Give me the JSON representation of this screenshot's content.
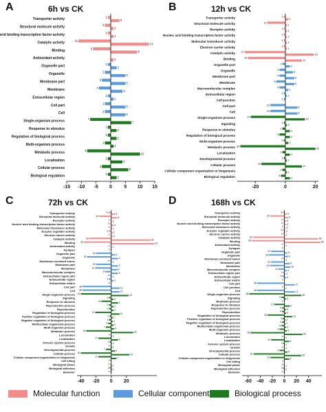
{
  "legend": [
    {
      "name": "Molecular function",
      "color": "#f08c8c"
    },
    {
      "name": "Cellular component",
      "color": "#5b9bdf"
    },
    {
      "name": "Biological process",
      "color": "#1e7a1e"
    }
  ],
  "chart_data": [
    {
      "type": "diverging-bar",
      "panel": "A",
      "title": "6h vs CK",
      "xlim": [
        -15,
        15
      ],
      "xticks": [
        -15,
        -10,
        -5,
        0,
        5,
        10,
        15
      ],
      "groups": [
        {
          "categories": [
            "Transporter activity",
            "Structural molecule activity",
            "Nucleic acid binding transcription factor activity",
            "Catalytic activity",
            "Binding",
            "Antioxidant activity"
          ],
          "down": [
            -1,
            -2,
            -1,
            -11,
            -6,
            null
          ],
          "down_labels": [
            "1",
            "2",
            "1",
            "11",
            "6",
            null
          ],
          "up": [
            3,
            1,
            1,
            13,
            9,
            1
          ]
        },
        {
          "categories": [
            "Organelle part",
            "Organelle",
            "Membrane part",
            "Membrane",
            "Extracellular region",
            "Cell part",
            "Cell"
          ],
          "down": [
            -1,
            -2,
            -3,
            -4,
            -1,
            -2,
            -2
          ],
          "down_labels": [
            "1",
            "2",
            "3",
            "4",
            "1",
            "2",
            "2"
          ],
          "up": [
            2,
            5,
            5,
            4,
            1,
            5,
            5
          ]
        },
        {
          "categories": [
            "Single-organism process",
            "Response to stimulus",
            "Regulation of biological process",
            "Multi-organism process",
            "Metabolic process",
            "Localization",
            "Cellular process",
            "Biological regulation"
          ],
          "down": [
            -7,
            -1,
            -1,
            -2,
            -8,
            -1,
            -3,
            -1
          ],
          "down_labels": [
            "7",
            "1",
            "1",
            "2",
            "8",
            "1",
            "3",
            "1"
          ],
          "up": [
            7,
            2,
            2,
            1,
            10,
            4,
            6,
            2
          ]
        }
      ]
    },
    {
      "type": "diverging-bar",
      "panel": "B",
      "title": "12h vs CK",
      "xlim": [
        -32,
        22
      ],
      "xticks": [
        -20,
        0,
        20
      ],
      "groups": [
        {
          "categories": [
            "Transporter activity",
            "Structural molecule activity",
            "Receptor activity",
            "Nucleic acid binding transcription factor activity",
            "Molecular transducer activity",
            "Electron carrier activity",
            "Catalytic activity",
            "Binding"
          ],
          "down": [
            -1,
            -12,
            -1,
            -1,
            -1,
            -1,
            -27,
            -25
          ],
          "down_labels": [
            "1",
            "12",
            "1",
            "1",
            "1",
            "1",
            "27",
            "25"
          ],
          "up": [
            2,
            1,
            1,
            1,
            1,
            1,
            19,
            11
          ]
        },
        {
          "categories": [
            "Organelle part",
            "Organelle",
            "Membrane part",
            "Membrane",
            "Macromolecular complex",
            "Extracellular region",
            "Cell junction",
            "Cell part",
            "Cell"
          ],
          "down": [
            -2,
            -4,
            -4,
            -6,
            -4,
            -1,
            -1,
            -10,
            -10
          ],
          "down_labels": [
            "2",
            "4",
            "4",
            "6",
            "4",
            "1",
            "1",
            "10",
            "10"
          ],
          "up": [
            3,
            5,
            6,
            6,
            2,
            1,
            null,
            8,
            8
          ]
        },
        {
          "categories": [
            "Single-organism process",
            "Signaling",
            "Response to stimulus",
            "Regulation of biological process",
            "Multi-organism process",
            "Metabolic process",
            "Localization",
            "Developmental process",
            "Cellular process",
            "Cellular component organization or biogenesis",
            "Biological regulation"
          ],
          "down": [
            -23,
            -1,
            -2,
            -4,
            -1,
            -30,
            -2,
            -1,
            -16,
            -2,
            -3
          ],
          "down_labels": [
            "23",
            "1",
            "2",
            "4",
            "1",
            "30",
            "2",
            "1",
            "16",
            "2",
            "3"
          ],
          "up": [
            13,
            1,
            3,
            3,
            2,
            20,
            3,
            1,
            11,
            1,
            3
          ]
        }
      ]
    },
    {
      "type": "diverging-bar",
      "panel": "C",
      "title": "72h vs CK",
      "xlim": [
        -45,
        60
      ],
      "xticks": [
        -40,
        -20,
        0,
        20
      ],
      "groups": [
        {
          "categories": [
            "Transporter activity",
            "Structural molecule activity",
            "Receptor activity",
            "Nucleic acid binding transcription factor activity",
            "Molecular transducer activity",
            "Enzyme regulator activity",
            "Electron carrier activity",
            "Catalytic activity",
            "Binding",
            "Antioxidant activity"
          ],
          "down": [
            -4,
            -16,
            -1,
            -2,
            -1,
            -3,
            -1,
            -29,
            -36,
            -1
          ],
          "down_labels": [
            "4",
            "16",
            "1",
            "2",
            "1",
            "3",
            "1",
            "29",
            "36",
            "1"
          ],
          "up": [
            5,
            8,
            1,
            3,
            1,
            2,
            2,
            52,
            57,
            1
          ]
        },
        {
          "categories": [
            "Synapse",
            "Organelle part",
            "Organelle",
            "Membrane-enclosed lumen",
            "Membrane part",
            "Membrane",
            "Macromolecular complex",
            "Extracellular region part",
            "Extracellular region",
            "Extracellular matrix",
            "Cell part",
            "Cell"
          ],
          "down": [
            -1,
            -20,
            -32,
            -2,
            -20,
            -21,
            -8,
            -2,
            -3,
            -1,
            -38,
            -38
          ],
          "down_labels": [
            "1",
            "20",
            "32",
            "2",
            "20",
            "21",
            "8",
            "2",
            "3",
            "1",
            "38",
            "38"
          ],
          "up": [
            null,
            5,
            9,
            1,
            9,
            8,
            9,
            1,
            3,
            null,
            11,
            11
          ]
        },
        {
          "categories": [
            "Single-organism process",
            "Signaling",
            "Response to stimulus",
            "Reproductive process",
            "Reproduction",
            "Regulation of biological process",
            "Positive regulation of biological process",
            "Negative regulation of biological process",
            "Multicellular organismal process",
            "Multi-organism process",
            "Metabolic process",
            "Locomotion",
            "Localization",
            "Immune system process",
            "Growth",
            "Developmental process",
            "Cellular process",
            "Cellular component organization or biogenesis",
            "Cell killing",
            "Biological phase",
            "Biological adhesion",
            "Behavior"
          ],
          "down": [
            -40,
            -3,
            -13,
            -3,
            -3,
            -21,
            -2,
            -3,
            -4,
            -7,
            -33,
            -1,
            -17,
            -2,
            -1,
            -7,
            -40,
            -17,
            -1,
            -1,
            -2,
            -1
          ],
          "down_labels": [
            "40",
            "3",
            "13",
            "3",
            "3",
            "21",
            "2",
            "3",
            "4",
            "7",
            "33",
            "1",
            "17",
            "2",
            "1",
            "7",
            "40",
            "17",
            "1",
            "1",
            "2",
            "1"
          ],
          "up": [
            23,
            3,
            9,
            3,
            3,
            11,
            2,
            2,
            3,
            4,
            29,
            1,
            9,
            1,
            1,
            5,
            24,
            7,
            null,
            1,
            1,
            null
          ]
        }
      ]
    },
    {
      "type": "diverging-bar",
      "panel": "D",
      "title": "168h vs CK",
      "xlim": [
        -70,
        62
      ],
      "xticks": [
        -60,
        -40,
        -20,
        0,
        20,
        40
      ],
      "groups": [
        {
          "categories": [
            "Transporter activity",
            "Structural molecule activity",
            "Receptor activity",
            "Nucleic acid binding transcription factor activity",
            "Molecular transducer activity",
            "Enzyme regulator activity",
            "Electron carrier activity",
            "Catalytic activity",
            "Binding",
            "Antioxidant activity"
          ],
          "down": [
            -3,
            -24,
            -2,
            -2,
            -1,
            -3,
            -2,
            -52,
            -54,
            -1
          ],
          "down_labels": [
            "3",
            "24",
            "2",
            "2",
            "1",
            "3",
            "2",
            "52",
            "54",
            "1"
          ],
          "up": [
            4,
            6,
            3,
            3,
            2,
            2,
            1,
            56,
            60,
            1
          ]
        },
        {
          "categories": [
            "Synapse",
            "Organelle part",
            "Organelle",
            "Membrane-enclosed lumen",
            "Membrane part",
            "Membrane",
            "Macromolecular complex",
            "Extracellular region part",
            "Extracellular region",
            "Extracellular matrix",
            "Cell part",
            "Cell junction",
            "Cell"
          ],
          "down": [
            -1,
            -22,
            -26,
            -2,
            -22,
            -24,
            -10,
            -2,
            -4,
            -1,
            -45,
            -1,
            -45
          ],
          "down_labels": [
            "1",
            "22",
            "26",
            "2",
            "22",
            "24",
            "10",
            "2",
            "4",
            "1",
            "45",
            "1",
            "45"
          ],
          "up": [
            null,
            5,
            6,
            1,
            9,
            10,
            4,
            2,
            3,
            null,
            17,
            1,
            17
          ]
        },
        {
          "categories": [
            "Single-organism process",
            "Signaling",
            "Rhythmic process",
            "Response to stimulus",
            "Reproductive process",
            "Reproduction",
            "Regulation of biological process",
            "Positive regulation of biological process",
            "Negative regulation of biological process",
            "Multicellular organismal process",
            "Multi-organism process",
            "Metabolic process",
            "Locomotion",
            "Localization",
            "Immune system process",
            "Growth",
            "Developmental process",
            "Cellular process",
            "Cellular component organization or biogenesis",
            "Cell killing",
            "Biological phase",
            "Biological adhesion",
            "Behavior"
          ],
          "down": [
            -58,
            -5,
            -1,
            -17,
            -4,
            -4,
            -28,
            -3,
            -4,
            -5,
            -8,
            -56,
            -1,
            -22,
            -2,
            -1,
            -8,
            -51,
            -23,
            -1,
            -1,
            -2,
            -1
          ],
          "down_labels": [
            "58",
            "5",
            "1",
            "17",
            "4",
            "4",
            "28",
            "3",
            "4",
            "5",
            "8",
            "56",
            "1",
            "22",
            "2",
            "1",
            "8",
            "51",
            "23",
            "1",
            "1",
            "2",
            "1"
          ],
          "up": [
            28,
            3,
            null,
            9,
            3,
            3,
            13,
            2,
            2,
            3,
            4,
            30,
            1,
            8,
            1,
            1,
            5,
            28,
            8,
            null,
            1,
            1,
            null
          ]
        }
      ]
    }
  ]
}
